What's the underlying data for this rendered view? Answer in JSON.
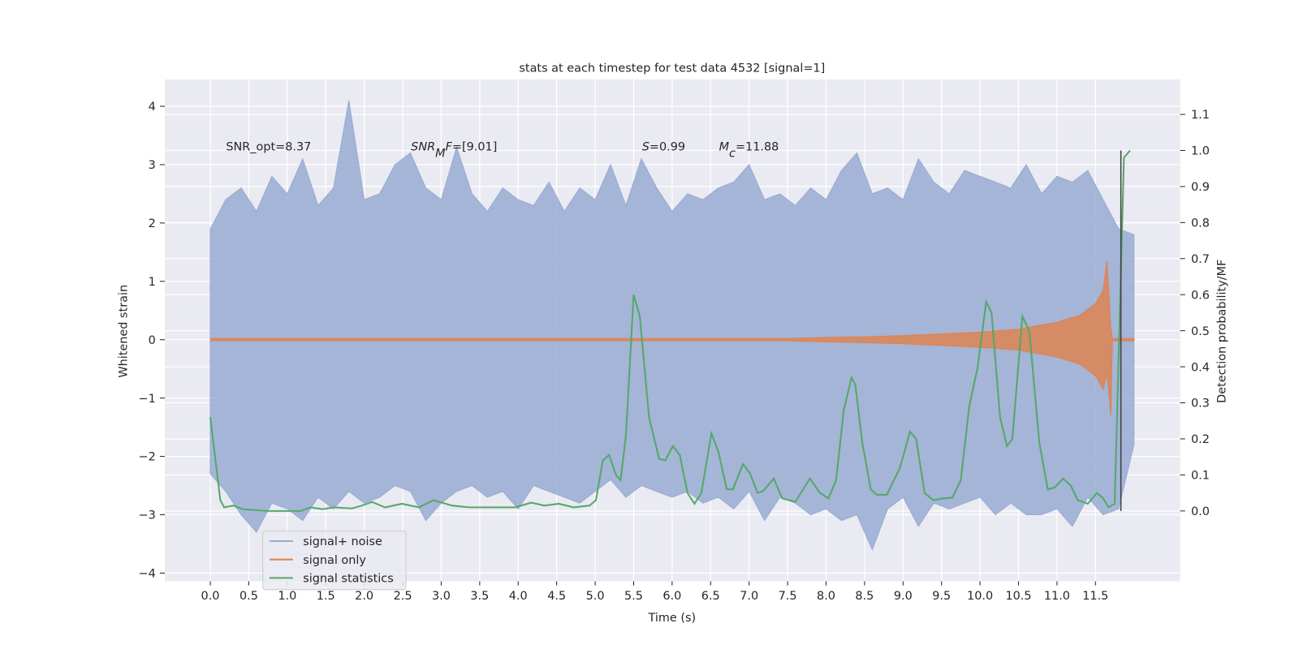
{
  "chart_data": {
    "type": "line",
    "title": "stats at each timestep for test data 4532 [signal=1]",
    "xlabel": "Time (s)",
    "ylabel": "Whitened strain",
    "y2label": "Detection probability/MF",
    "grid": true,
    "legend": "lower left",
    "xlim": [
      -0.59,
      12.6
    ],
    "ylim": [
      -4.14,
      4.46
    ],
    "y2lim": [
      -0.195,
      1.197
    ],
    "xticks": [
      {
        "value": 0,
        "label": "0.0"
      },
      {
        "value": 0.5,
        "label": "0.5"
      },
      {
        "value": 1,
        "label": "1.0"
      },
      {
        "value": 1.5,
        "label": "1.5"
      },
      {
        "value": 2,
        "label": "2.0"
      },
      {
        "value": 2.5,
        "label": "2.5"
      },
      {
        "value": 3,
        "label": "3.0"
      },
      {
        "value": 3.5,
        "label": "3.5"
      },
      {
        "value": 4,
        "label": "4.0"
      },
      {
        "value": 4.5,
        "label": "4.5"
      },
      {
        "value": 5,
        "label": "5.0"
      },
      {
        "value": 5.5,
        "label": "5.5"
      },
      {
        "value": 6,
        "label": "6.0"
      },
      {
        "value": 6.5,
        "label": "6.5"
      },
      {
        "value": 7,
        "label": "7.0"
      },
      {
        "value": 7.5,
        "label": "7.5"
      },
      {
        "value": 8,
        "label": "8.0"
      },
      {
        "value": 8.5,
        "label": "8.5"
      },
      {
        "value": 9,
        "label": "9.0"
      },
      {
        "value": 9.5,
        "label": "9.5"
      },
      {
        "value": 10,
        "label": "10.0"
      },
      {
        "value": 10.5,
        "label": "10.5"
      },
      {
        "value": 11,
        "label": "11.0"
      },
      {
        "value": 11.5,
        "label": "11.5"
      }
    ],
    "yticks": [
      {
        "value": -4,
        "label": "−4"
      },
      {
        "value": -3,
        "label": "−3"
      },
      {
        "value": -2,
        "label": "−2"
      },
      {
        "value": -1,
        "label": "−1"
      },
      0,
      1,
      2,
      3,
      4
    ],
    "y2ticks": [
      {
        "value": 0,
        "label": "0.0"
      },
      {
        "value": 0.1,
        "label": "0.1"
      },
      {
        "value": 0.2,
        "label": "0.2"
      },
      {
        "value": 0.3,
        "label": "0.3"
      },
      {
        "value": 0.4,
        "label": "0.4"
      },
      {
        "value": 0.5,
        "label": "0.5"
      },
      {
        "value": 0.6,
        "label": "0.6"
      },
      {
        "value": 0.7,
        "label": "0.7"
      },
      {
        "value": 0.8,
        "label": "0.8"
      },
      {
        "value": 0.9,
        "label": "0.9"
      },
      {
        "value": 1,
        "label": "1.0"
      },
      {
        "value": 1.1,
        "label": "1.1"
      }
    ],
    "series": [
      {
        "name": "signal+ noise",
        "color": "#98abd2",
        "kind": "band",
        "x": [
          0,
          0.2,
          0.4,
          0.6,
          0.8,
          1,
          1.2,
          1.4,
          1.6,
          1.8,
          2,
          2.2,
          2.4,
          2.6,
          2.8,
          3,
          3.2,
          3.4,
          3.6,
          3.8,
          4,
          4.2,
          4.4,
          4.6,
          4.8,
          5,
          5.2,
          5.4,
          5.6,
          5.8,
          6,
          6.2,
          6.4,
          6.6,
          6.8,
          7,
          7.2,
          7.4,
          7.6,
          7.8,
          8,
          8.2,
          8.4,
          8.6,
          8.8,
          9,
          9.2,
          9.4,
          9.6,
          9.8,
          10,
          10.2,
          10.4,
          10.6,
          10.8,
          11,
          11.2,
          11.4,
          11.6,
          11.8,
          12
        ],
        "values": [
          1.9,
          2.4,
          2.6,
          2.2,
          2.8,
          2.5,
          3.1,
          2.3,
          2.6,
          4.1,
          2.4,
          2.5,
          3.0,
          3.2,
          2.6,
          2.4,
          3.3,
          2.5,
          2.2,
          2.6,
          2.4,
          2.3,
          2.7,
          2.2,
          2.6,
          2.4,
          3.0,
          2.3,
          3.1,
          2.6,
          2.2,
          2.5,
          2.4,
          2.6,
          2.7,
          3.0,
          2.4,
          2.5,
          2.3,
          2.6,
          2.4,
          2.9,
          3.2,
          2.5,
          2.6,
          2.4,
          3.1,
          2.7,
          2.5,
          2.9,
          2.8,
          2.7,
          2.6,
          3.0,
          2.5,
          2.8,
          2.7,
          2.9,
          2.4,
          1.9,
          1.8
        ],
        "lows": [
          -2.3,
          -2.6,
          -3.0,
          -3.3,
          -2.8,
          -2.9,
          -3.1,
          -2.7,
          -2.9,
          -2.6,
          -2.8,
          -2.7,
          -2.5,
          -2.6,
          -3.1,
          -2.8,
          -2.6,
          -2.5,
          -2.7,
          -2.6,
          -2.9,
          -2.5,
          -2.6,
          -2.7,
          -2.8,
          -2.6,
          -2.4,
          -2.7,
          -2.5,
          -2.6,
          -2.7,
          -2.6,
          -2.8,
          -2.7,
          -2.9,
          -2.6,
          -3.1,
          -2.7,
          -2.8,
          -3.0,
          -2.9,
          -3.1,
          -3.0,
          -3.6,
          -2.9,
          -2.7,
          -3.2,
          -2.8,
          -2.9,
          -2.8,
          -2.7,
          -3.0,
          -2.8,
          -3.0,
          -3.0,
          -2.9,
          -3.2,
          -2.7,
          -3.0,
          -2.9,
          -1.8
        ]
      },
      {
        "name": "signal only",
        "color": "#dd8452",
        "kind": "band",
        "x": [
          0,
          7.5,
          8,
          8.5,
          9,
          9.5,
          10,
          10.5,
          11,
          11.3,
          11.5,
          11.6,
          11.65,
          11.7,
          11.72,
          12
        ],
        "values": [
          0.02,
          0.02,
          0.04,
          0.05,
          0.07,
          0.1,
          0.13,
          0.18,
          0.3,
          0.42,
          0.62,
          0.85,
          1.35,
          0.2,
          0.02,
          0.02
        ],
        "lows": [
          -0.02,
          -0.02,
          -0.04,
          -0.05,
          -0.07,
          -0.1,
          -0.13,
          -0.18,
          -0.3,
          -0.42,
          -0.62,
          -0.85,
          -0.6,
          -1.3,
          -0.02,
          -0.02
        ]
      },
      {
        "name": "signal statistics",
        "color": "#55a868",
        "kind": "line",
        "axis": "y2",
        "x": [
          0,
          0.13,
          0.18,
          0.3,
          0.42,
          0.75,
          1.18,
          1.3,
          1.46,
          1.6,
          1.84,
          1.97,
          2.1,
          2.27,
          2.49,
          2.71,
          2.9,
          3.14,
          3.36,
          3.68,
          3.96,
          4.17,
          4.34,
          4.53,
          4.72,
          4.93,
          5.01,
          5.1,
          5.18,
          5.27,
          5.33,
          5.4,
          5.5,
          5.58,
          5.7,
          5.83,
          5.91,
          6.01,
          6.1,
          6.2,
          6.29,
          6.38,
          6.51,
          6.6,
          6.71,
          6.79,
          6.92,
          7.01,
          7.11,
          7.18,
          7.32,
          7.43,
          7.6,
          7.79,
          7.92,
          8.03,
          8.13,
          8.23,
          8.33,
          8.38,
          8.47,
          8.58,
          8.66,
          8.79,
          8.96,
          9.09,
          9.17,
          9.28,
          9.39,
          9.53,
          9.64,
          9.75,
          9.86,
          9.97,
          10.08,
          10.15,
          10.26,
          10.35,
          10.42,
          10.55,
          10.64,
          10.77,
          10.88,
          10.97,
          11.08,
          11.18,
          11.27,
          11.4,
          11.52,
          11.6,
          11.67,
          11.75,
          11.87,
          11.95
        ],
        "values": [
          0.26,
          0.03,
          0.01,
          0.015,
          0.005,
          0,
          0,
          0.01,
          0.005,
          0.01,
          0.007,
          0.015,
          0.025,
          0.01,
          0.02,
          0.01,
          0.03,
          0.015,
          0.01,
          0.01,
          0.01,
          0.023,
          0.015,
          0.02,
          0.01,
          0.015,
          0.03,
          0.14,
          0.155,
          0.1,
          0.085,
          0.21,
          0.6,
          0.54,
          0.26,
          0.145,
          0.14,
          0.18,
          0.155,
          0.05,
          0.02,
          0.05,
          0.215,
          0.165,
          0.06,
          0.06,
          0.13,
          0.105,
          0.05,
          0.055,
          0.09,
          0.035,
          0.025,
          0.09,
          0.05,
          0.035,
          0.085,
          0.28,
          0.37,
          0.35,
          0.19,
          0.06,
          0.045,
          0.045,
          0.12,
          0.22,
          0.2,
          0.05,
          0.03,
          0.035,
          0.037,
          0.085,
          0.29,
          0.4,
          0.58,
          0.55,
          0.26,
          0.18,
          0.2,
          0.54,
          0.5,
          0.19,
          0.06,
          0.065,
          0.09,
          0.07,
          0.03,
          0.02,
          0.05,
          0.035,
          0.01,
          0.02,
          0.98,
          1.0
        ]
      }
    ],
    "vline": {
      "x": 11.83,
      "ymin": 0,
      "ymax": 1,
      "axis": "y2",
      "color": "#404040"
    },
    "annotations": [
      {
        "parts": [
          {
            "text": "SNR_opt=8.37"
          }
        ]
      },
      {
        "parts": [
          {
            "text": "SNR",
            "style": "italic"
          },
          {
            "text": "M",
            "style": "sub"
          },
          {
            "text": "F",
            "style": "italic"
          },
          {
            "text": "=[9.01]"
          }
        ]
      },
      {
        "parts": [
          {
            "text": "S",
            "style": "italic"
          },
          {
            "text": "=0.99"
          }
        ]
      },
      {
        "parts": [
          {
            "text": "M",
            "style": "italic"
          },
          {
            "text": "c",
            "style": "sub"
          },
          {
            "text": "=11.88"
          }
        ]
      }
    ]
  }
}
